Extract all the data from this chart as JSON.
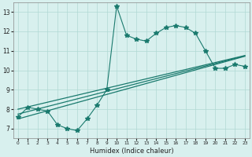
{
  "xlabel": "Humidex (Indice chaleur)",
  "x_values": [
    0,
    1,
    2,
    3,
    4,
    5,
    6,
    7,
    8,
    9,
    10,
    11,
    12,
    13,
    14,
    15,
    16,
    17,
    18,
    19,
    20,
    21,
    22,
    23
  ],
  "y_main": [
    7.6,
    8.1,
    8.0,
    7.9,
    7.2,
    7.0,
    6.9,
    7.5,
    8.2,
    9.0,
    13.3,
    11.8,
    11.6,
    11.5,
    11.9,
    12.2,
    12.3,
    12.2,
    11.9,
    11.0,
    10.1,
    10.1,
    10.3,
    10.2
  ],
  "y_upper": [
    8.0,
    8.12,
    8.24,
    8.36,
    8.48,
    8.6,
    8.72,
    8.84,
    8.96,
    9.08,
    9.2,
    9.32,
    9.44,
    9.56,
    9.68,
    9.8,
    9.92,
    10.04,
    10.16,
    10.28,
    10.4,
    10.52,
    10.64,
    10.76
  ],
  "y_mid": [
    7.75,
    7.88,
    8.01,
    8.14,
    8.27,
    8.4,
    8.53,
    8.66,
    8.79,
    8.92,
    9.05,
    9.18,
    9.31,
    9.44,
    9.57,
    9.7,
    9.83,
    9.96,
    10.09,
    10.22,
    10.35,
    10.48,
    10.61,
    10.74
  ],
  "y_lower": [
    7.5,
    7.64,
    7.78,
    7.92,
    8.06,
    8.2,
    8.34,
    8.48,
    8.62,
    8.76,
    8.9,
    9.04,
    9.18,
    9.32,
    9.46,
    9.6,
    9.74,
    9.88,
    10.02,
    10.16,
    10.3,
    10.44,
    10.58,
    10.72
  ],
  "line_color": "#1a7a6e",
  "bg_color": "#d8f0ee",
  "grid_color": "#b0d8d4",
  "ylim": [
    6.5,
    13.5
  ],
  "xlim": [
    -0.5,
    23.5
  ],
  "yticks": [
    7,
    8,
    9,
    10,
    11,
    12,
    13
  ],
  "xticks": [
    0,
    1,
    2,
    3,
    4,
    5,
    6,
    7,
    8,
    9,
    10,
    11,
    12,
    13,
    14,
    15,
    16,
    17,
    18,
    19,
    20,
    21,
    22,
    23
  ]
}
